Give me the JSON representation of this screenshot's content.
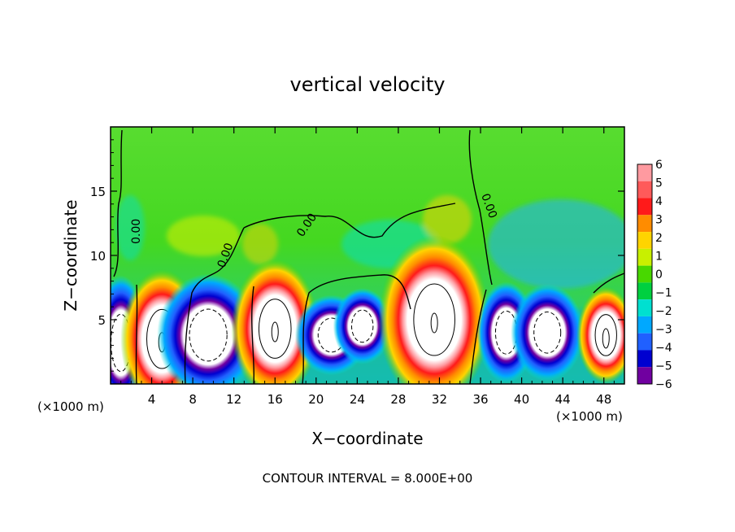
{
  "chart_data": {
    "type": "heatmap",
    "title": "vertical velocity",
    "xlabel": "X−coordinate",
    "ylabel": "Z−coordinate",
    "x_unit_left": "(×1000 m)",
    "x_unit_right": "(×1000 m)",
    "footer": "CONTOUR INTERVAL = 8.000E+00",
    "xlim": [
      0,
      50
    ],
    "ylim": [
      0,
      20
    ],
    "x_ticks": [
      4,
      8,
      12,
      16,
      20,
      24,
      28,
      32,
      36,
      40,
      44,
      48
    ],
    "x_tick_labels": [
      "4",
      "8",
      "12",
      "16",
      "20",
      "24",
      "28",
      "32",
      "36",
      "40",
      "44",
      "48"
    ],
    "y_ticks": [
      5,
      10,
      15
    ],
    "y_tick_labels": [
      "5",
      "10",
      "15"
    ],
    "contour_labels": [
      "0.00",
      "0.00",
      "0.00",
      "0.00"
    ],
    "colorbar": {
      "min": -6,
      "max": 6,
      "levels": [
        6,
        5,
        4,
        3,
        2,
        1,
        0,
        -1,
        -2,
        -3,
        -4,
        -5,
        -6
      ],
      "labels": [
        "6",
        "5",
        "4",
        "3",
        "2",
        "1",
        "0",
        "−1",
        "−2",
        "−3",
        "−4",
        "−5",
        "−6"
      ],
      "colors": [
        "#ff9aa0",
        "#ff5a5a",
        "#ff1a1a",
        "#ff8c00",
        "#ffd400",
        "#c8f000",
        "#48d800",
        "#00d040",
        "#00e0d0",
        "#00a8ff",
        "#2060ff",
        "#0000d0",
        "#7000a0"
      ]
    },
    "cells": [
      {
        "x": 1.0,
        "z": 3.2,
        "w": -6
      },
      {
        "x": 5.0,
        "z": 3.5,
        "w": 6
      },
      {
        "x": 9.5,
        "z": 3.8,
        "w": -6
      },
      {
        "x": 16.0,
        "z": 4.3,
        "w": 6
      },
      {
        "x": 21.5,
        "z": 3.8,
        "w": -6
      },
      {
        "x": 24.5,
        "z": 4.5,
        "w": -6
      },
      {
        "x": 31.5,
        "z": 5.0,
        "w": 6
      },
      {
        "x": 38.5,
        "z": 4.0,
        "w": -6
      },
      {
        "x": 42.5,
        "z": 4.0,
        "w": -6
      },
      {
        "x": 48.2,
        "z": 3.8,
        "w": 6
      }
    ]
  }
}
